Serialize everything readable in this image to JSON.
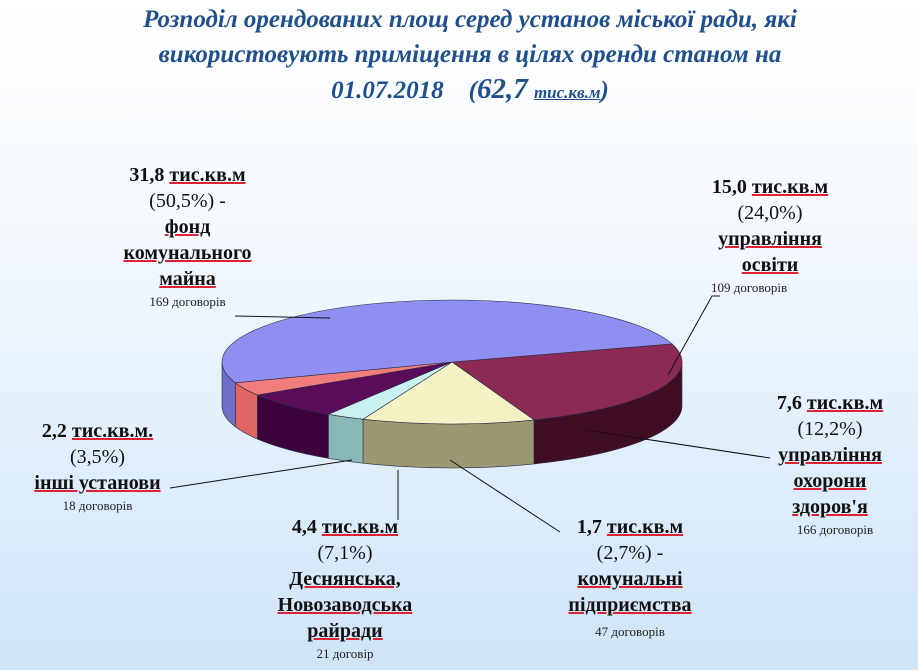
{
  "title": {
    "line1": "Розподіл орендованих площ серед установ міської ради, які",
    "line2": "використовують приміщення в   цілях  оренди станом на",
    "line3_date": "01.07.2018",
    "line3_total": "62,7",
    "line3_unit": "тис.кв.м"
  },
  "chart_data": {
    "type": "pie",
    "style": "3d",
    "title": "Розподіл орендованих площ серед установ міської ради, які використовують приміщення в цілях оренди станом на 01.07.2018 (62,7 тис.кв.м)",
    "slices": [
      {
        "id": "fund",
        "value": 31.8,
        "percent": 50.5,
        "value_text": "31,8",
        "unit": "тис.кв.м",
        "percent_text": "(50,5%) -",
        "name_lines": [
          "фонд",
          "комунального",
          "майна"
        ],
        "contracts": "169 договорів",
        "color": "#8e8ff0",
        "side": "#6f70c9"
      },
      {
        "id": "education",
        "value": 15.0,
        "percent": 24.0,
        "value_text": "15,0",
        "unit": "тис.кв.м",
        "percent_text": "(24,0%)",
        "name_lines": [
          "управління",
          "освіти"
        ],
        "contracts": "109 договорів",
        "color": "#8c2a55",
        "side": "#3f0d24"
      },
      {
        "id": "health",
        "value": 7.6,
        "percent": 12.2,
        "value_text": "7,6",
        "unit": "тис.кв.м",
        "percent_text": "(12,2%)",
        "name_lines": [
          "управління",
          "охорони",
          "здоров'я"
        ],
        "contracts": "166 договорів",
        "color": "#f4f2c4",
        "side": "#9a9872"
      },
      {
        "id": "communal",
        "value": 1.7,
        "percent": 2.7,
        "value_text": "1,7",
        "unit": "тис.кв.м",
        "percent_text": "(2,7%) -",
        "name_lines": [
          "комунальні",
          "підприємства"
        ],
        "contracts": "47 договорів",
        "color": "#c9f0f0",
        "side": "#8ab7b7"
      },
      {
        "id": "districts",
        "value": 4.4,
        "percent": 7.1,
        "value_text": "4,4",
        "unit": "тис.кв.м",
        "percent_text": "(7,1%)",
        "name_lines": [
          "Деснянська,",
          "Новозаводська",
          "райради"
        ],
        "contracts": "21 договір",
        "color": "#5a0b5a",
        "side": "#3d033d"
      },
      {
        "id": "other",
        "value": 2.2,
        "percent": 3.5,
        "value_text": "2,2",
        "unit": "тис.кв.м.",
        "percent_text": "(3,5%)",
        "name_lines": [
          "інші установи"
        ],
        "contracts": "18 договорів",
        "color": "#f07c7c",
        "side": "#e06565"
      }
    ]
  }
}
